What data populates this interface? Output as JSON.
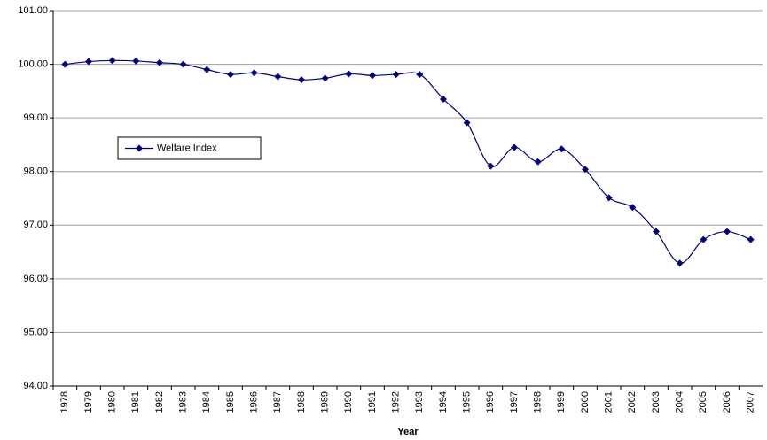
{
  "chart_data": {
    "type": "line",
    "x_label": "Year",
    "categories": [
      "1978",
      "1979",
      "1980",
      "1981",
      "1982",
      "1983",
      "1984",
      "1985",
      "1986",
      "1987",
      "1988",
      "1989",
      "1990",
      "1991",
      "1992",
      "1993",
      "1994",
      "1995",
      "1996",
      "1997",
      "1998",
      "1999",
      "2000",
      "2001",
      "2002",
      "2003",
      "2004",
      "2005",
      "2006",
      "2007"
    ],
    "series": [
      {
        "name": "Welfare Index",
        "color": "#000080",
        "values": [
          100.0,
          100.05,
          100.07,
          100.06,
          100.03,
          100.0,
          99.9,
          99.81,
          99.84,
          99.77,
          99.71,
          99.74,
          99.82,
          99.79,
          99.81,
          99.81,
          99.35,
          98.91,
          98.1,
          98.45,
          98.18,
          98.42,
          98.04,
          97.51,
          97.33,
          96.88,
          96.29,
          96.73,
          96.88,
          96.73
        ]
      }
    ],
    "ylim": [
      94,
      101
    ],
    "yticks": [
      {
        "value": 94,
        "label": "94.00"
      },
      {
        "value": 95,
        "label": "95.00"
      },
      {
        "value": 96,
        "label": "96.00"
      },
      {
        "value": 97,
        "label": "97.00"
      },
      {
        "value": 98,
        "label": "98.00"
      },
      {
        "value": 99,
        "label": "99.00"
      },
      {
        "value": 100,
        "label": "100.00"
      },
      {
        "value": 101,
        "label": "101.00"
      }
    ],
    "grid": true,
    "legend_position": "upper left"
  }
}
